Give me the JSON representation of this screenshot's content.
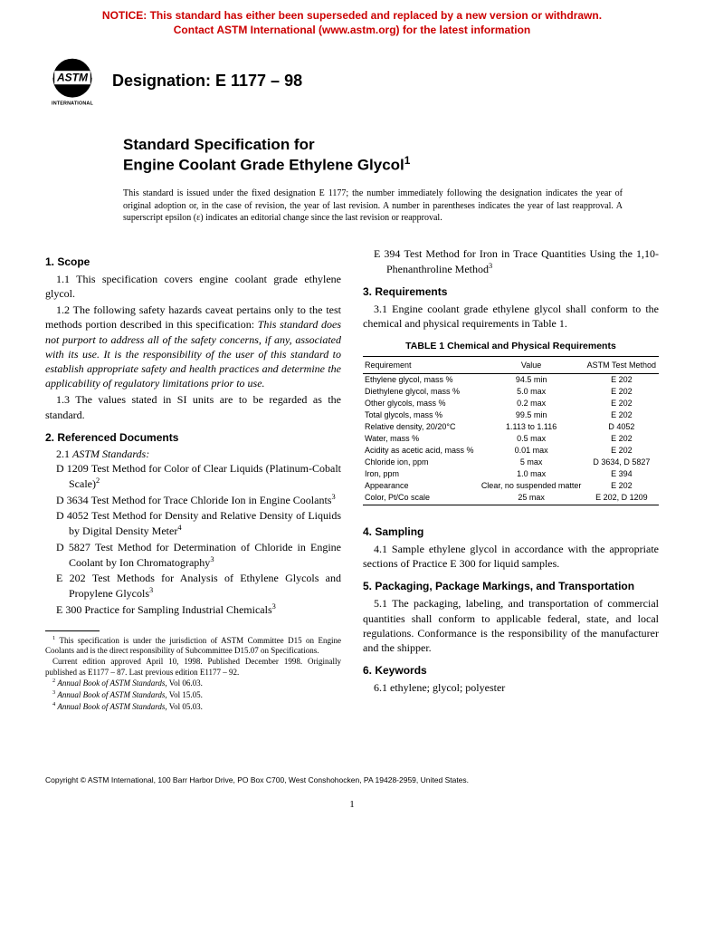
{
  "notice": {
    "line1": "NOTICE: This standard has either been superseded and replaced by a new version or withdrawn.",
    "line2": "Contact ASTM International (www.astm.org) for the latest information",
    "color": "#cc0000"
  },
  "logo": {
    "label_top": "ASTM",
    "label_bottom": "INTERNATIONAL"
  },
  "designation": "Designation: E 1177 – 98",
  "title": {
    "line1": "Standard Specification for",
    "line2_pre": "Engine Coolant Grade Ethylene Glycol",
    "sup": "1"
  },
  "issuance": "This standard is issued under the fixed designation E 1177; the number immediately following the designation indicates the year of original adoption or, in the case of revision, the year of last revision. A number in parentheses indicates the year of last reapproval. A superscript epsilon (ε) indicates an editorial change since the last revision or reapproval.",
  "sections": {
    "scope": {
      "head": "1. Scope",
      "p1": "1.1 This specification covers engine coolant grade ethylene glycol.",
      "p2_lead": "1.2 The following safety hazards caveat pertains only to the test methods portion described in this specification: ",
      "p2_italic": "This standard does not purport to address all of the safety concerns, if any, associated with its use. It is the responsibility of the user of this standard to establish appropriate safety and health practices and determine the applicability of regulatory limitations prior to use.",
      "p3": "1.3 The values stated in SI units are to be regarded as the standard."
    },
    "refs": {
      "head": "2. Referenced Documents",
      "sub_num": "2.1 ",
      "sub_italic": "ASTM Standards:",
      "items": [
        {
          "code": "D 1209",
          "text": "Test Method for Color of Clear Liquids (Platinum-Cobalt Scale)",
          "sup": "2"
        },
        {
          "code": "D 3634",
          "text": "Test Method for Trace Chloride Ion in Engine Coolants",
          "sup": "3"
        },
        {
          "code": "D 4052",
          "text": "Test Method for Density and Relative Density of Liquids by Digital Density Meter",
          "sup": "4"
        },
        {
          "code": "D 5827",
          "text": "Test Method for Determination of Chloride in Engine Coolant by Ion Chromatography",
          "sup": "3"
        },
        {
          "code": "E 202",
          "text": "Test Methods for Analysis of Ethylene Glycols and Propylene Glycols",
          "sup": "3"
        },
        {
          "code": "E 300",
          "text": "Practice for Sampling Industrial Chemicals",
          "sup": "3"
        }
      ],
      "right_item": {
        "code": "E 394",
        "text": "Test Method for Iron in Trace Quantities Using the 1,10-Phenanthroline Method",
        "sup": "3"
      }
    },
    "reqs": {
      "head": "3. Requirements",
      "p1": "3.1 Engine coolant grade ethylene glycol shall conform to the chemical and physical requirements in Table 1."
    },
    "sampling": {
      "head": "4. Sampling",
      "p1": "4.1 Sample ethylene glycol in accordance with the appropriate sections of Practice E 300 for liquid samples."
    },
    "packaging": {
      "head": "5. Packaging, Package Markings, and Transportation",
      "p1": "5.1 The packaging, labeling, and transportation of commercial quantities shall conform to applicable federal, state, and local regulations. Conformance is the responsibility of the manufacturer and the shipper."
    },
    "keywords": {
      "head": "6. Keywords",
      "p1": "6.1 ethylene; glycol; polyester"
    }
  },
  "table": {
    "title": "TABLE 1  Chemical and Physical Requirements",
    "headers": [
      "Requirement",
      "Value",
      "ASTM Test Method"
    ],
    "rows": [
      [
        "Ethylene glycol, mass %",
        "94.5 min",
        "E 202"
      ],
      [
        "Diethylene glycol, mass %",
        "5.0 max",
        "E 202"
      ],
      [
        "Other glycols, mass %",
        "0.2 max",
        "E 202"
      ],
      [
        "Total glycols, mass %",
        "99.5 min",
        "E 202"
      ],
      [
        "Relative density, 20/20°C",
        "1.113 to 1.116",
        "D 4052"
      ],
      [
        "Water, mass %",
        "0.5 max",
        "E 202"
      ],
      [
        "Acidity as acetic acid, mass %",
        "0.01 max",
        "E 202"
      ],
      [
        "Chloride ion, ppm",
        "5 max",
        "D 3634, D 5827"
      ],
      [
        "Iron, ppm",
        "1.0 max",
        "E 394"
      ],
      [
        "Appearance",
        "Clear, no suspended matter",
        "E 202"
      ],
      [
        "Color, Pt/Co scale",
        "25 max",
        "E 202, D 1209"
      ]
    ]
  },
  "footnotes": {
    "f1a": "This specification is under the jurisdiction of ASTM Committee D15 on Engine Coolants and is the direct responsibility of Subcommittee D15.07 on Specifications.",
    "f1b": "Current edition approved April 10, 1998. Published December 1998. Originally published as E1177 – 87. Last previous edition E1177 – 92.",
    "f2": "Annual Book of ASTM Standards",
    "f2v": ", Vol 06.03.",
    "f3": "Annual Book of ASTM Standards",
    "f3v": ", Vol 15.05.",
    "f4": "Annual Book of ASTM Standards",
    "f4v": ", Vol 05.03."
  },
  "copyright": "Copyright © ASTM International, 100 Barr Harbor Drive, PO Box C700, West Conshohocken, PA 19428-2959, United States.",
  "pagenum": "1"
}
